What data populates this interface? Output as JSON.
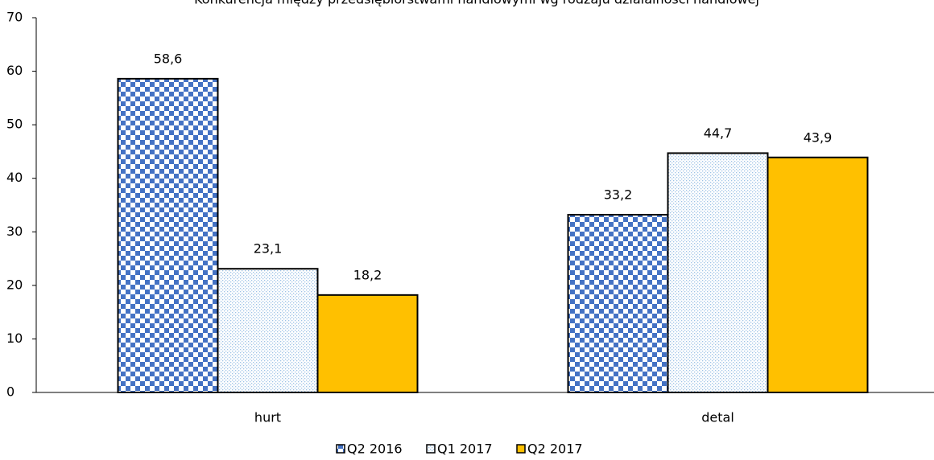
{
  "chart_data": {
    "type": "bar",
    "title": "Konkurencja między przedsiębiorstwami handlowymi wg rodzaju działalności handlowej",
    "categories": [
      "hurt",
      "detal"
    ],
    "series": [
      {
        "name": "Q2 2016",
        "color": "#4472c4",
        "values": [
          58.6,
          33.2
        ],
        "value_labels": [
          "58,6",
          "33,2"
        ]
      },
      {
        "name": "Q1 2017",
        "color": "#9dc3e6",
        "values": [
          23.1,
          44.7
        ],
        "value_labels": [
          "23,1",
          "44,7"
        ]
      },
      {
        "name": "Q2 2017",
        "color": "#ffc000",
        "values": [
          18.2,
          43.9
        ],
        "value_labels": [
          "18,2",
          "43,9"
        ]
      }
    ],
    "ylim": [
      0,
      70
    ],
    "yticks": [
      0,
      10,
      20,
      30,
      40,
      50,
      60,
      70
    ],
    "legend": "bottom"
  }
}
